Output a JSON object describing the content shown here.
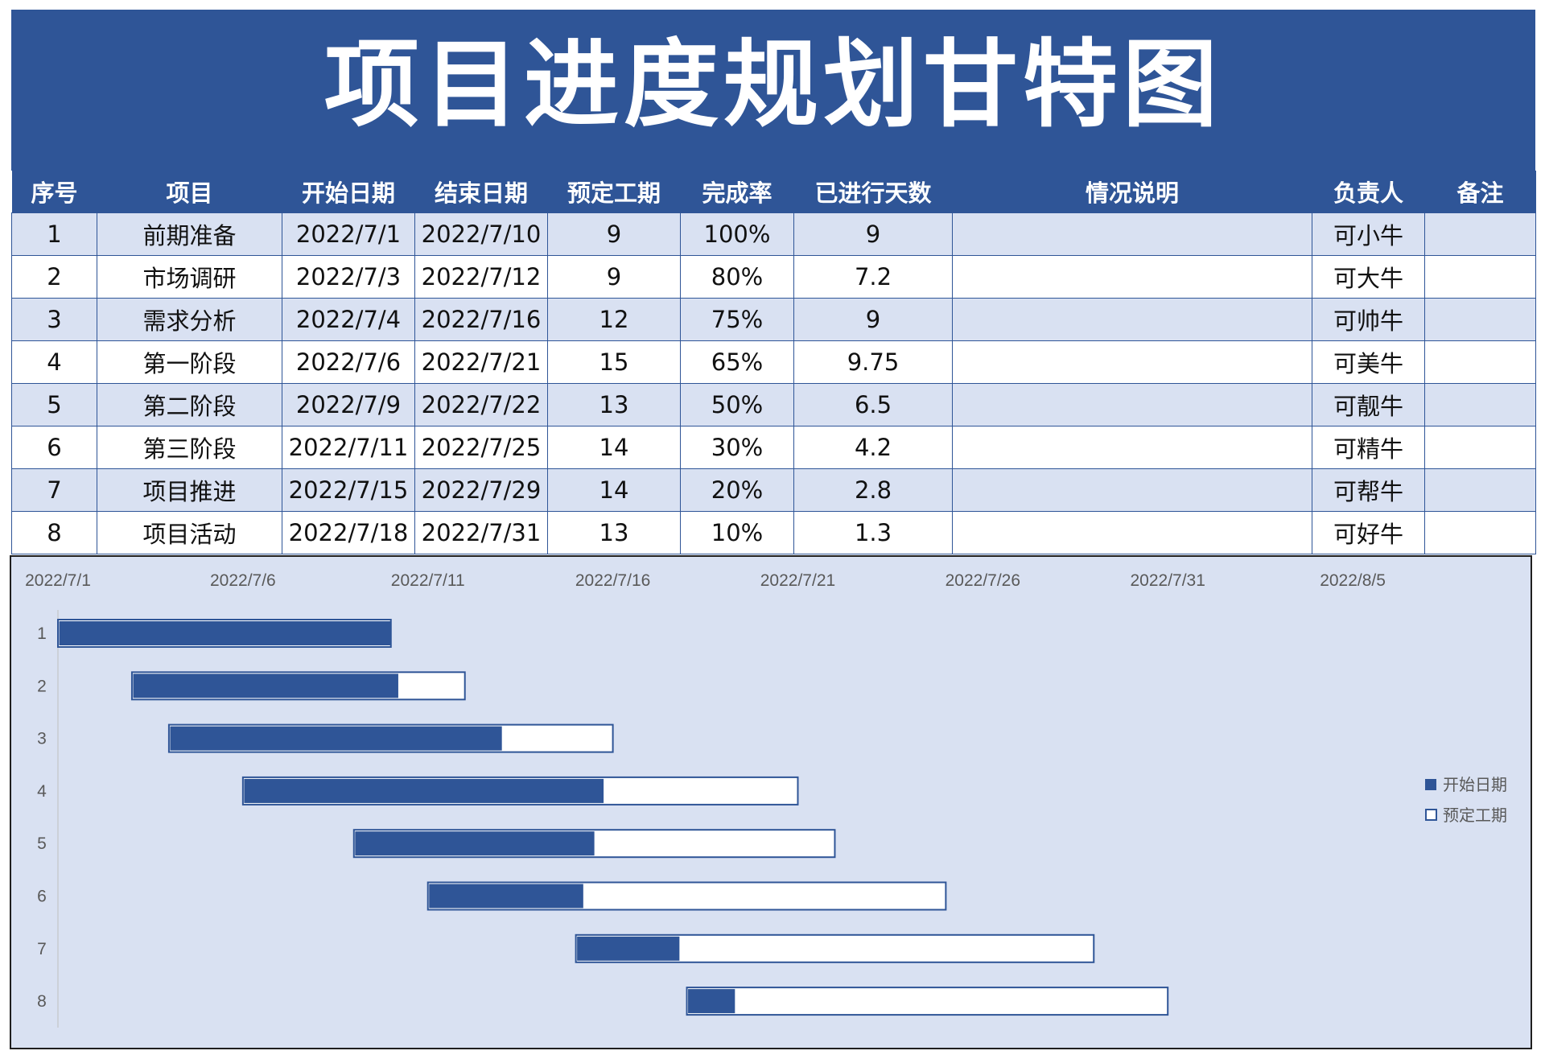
{
  "title": "项目进度规划甘特图",
  "table": {
    "headers": [
      "序号",
      "项目",
      "开始日期",
      "结束日期",
      "预定工期",
      "完成率",
      "已进行天数",
      "情况说明",
      "负责人",
      "备注"
    ],
    "rows": [
      [
        "1",
        "前期准备",
        "2022/7/1",
        "2022/7/10",
        "9",
        "100%",
        "9",
        "",
        "可小牛",
        ""
      ],
      [
        "2",
        "市场调研",
        "2022/7/3",
        "2022/7/12",
        "9",
        "80%",
        "7.2",
        "",
        "可大牛",
        ""
      ],
      [
        "3",
        "需求分析",
        "2022/7/4",
        "2022/7/16",
        "12",
        "75%",
        "9",
        "",
        "可帅牛",
        ""
      ],
      [
        "4",
        "第一阶段",
        "2022/7/6",
        "2022/7/21",
        "15",
        "65%",
        "9.75",
        "",
        "可美牛",
        ""
      ],
      [
        "5",
        "第二阶段",
        "2022/7/9",
        "2022/7/22",
        "13",
        "50%",
        "6.5",
        "",
        "可靓牛",
        ""
      ],
      [
        "6",
        "第三阶段",
        "2022/7/11",
        "2022/7/25",
        "14",
        "30%",
        "4.2",
        "",
        "可精牛",
        ""
      ],
      [
        "7",
        "项目推进",
        "2022/7/15",
        "2022/7/29",
        "14",
        "20%",
        "2.8",
        "",
        "可帮牛",
        ""
      ],
      [
        "8",
        "项目活动",
        "2022/7/18",
        "2022/7/31",
        "13",
        "10%",
        "1.3",
        "",
        "可好牛",
        ""
      ]
    ]
  },
  "chart_data": {
    "type": "bar",
    "orientation": "horizontal-gantt",
    "categories": [
      "1",
      "2",
      "3",
      "4",
      "5",
      "6",
      "7",
      "8"
    ],
    "x_ticks": [
      "2022/7/1",
      "2022/7/6",
      "2022/7/11",
      "2022/7/16",
      "2022/7/21",
      "2022/7/26",
      "2022/7/31",
      "2022/8/5"
    ],
    "xlim": [
      "2022/7/1",
      "2022/8/8"
    ],
    "starts": [
      "2022/7/1",
      "2022/7/3",
      "2022/7/4",
      "2022/7/6",
      "2022/7/9",
      "2022/7/11",
      "2022/7/15",
      "2022/7/18"
    ],
    "series": [
      {
        "name": "开始日期",
        "values": [
          9,
          7.2,
          9,
          9.75,
          6.5,
          4.2,
          2.8,
          1.3
        ],
        "color": "#2f5597"
      },
      {
        "name": "预定工期",
        "values": [
          9,
          9,
          12,
          15,
          13,
          14,
          14,
          13
        ],
        "color": "#ffffff",
        "stroke": "#2f5597"
      }
    ],
    "legend": "right",
    "grid": false
  }
}
